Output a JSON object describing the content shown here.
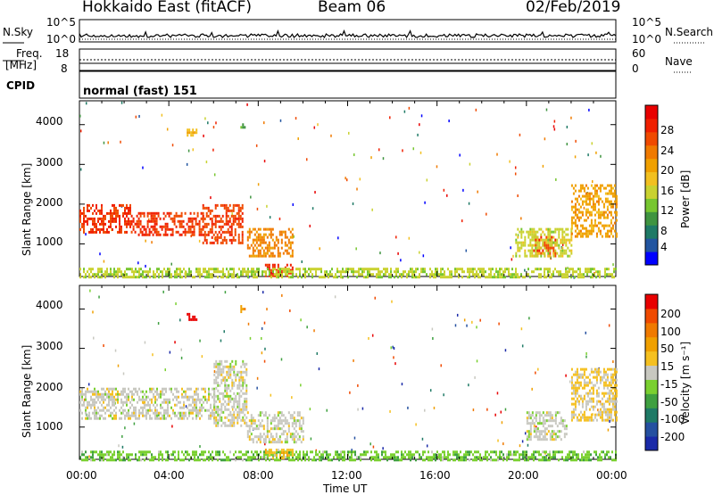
{
  "header": {
    "station": "Hokkaido East (fitACF)",
    "beam": "Beam 06",
    "date": "02/Feb/2019"
  },
  "panels": {
    "nsky": {
      "label": "N.Sky",
      "ticks": [
        "10^5",
        "10^0"
      ]
    },
    "nsearch": {
      "label": "N.Search",
      "ticks": [
        "10^5",
        "10^0"
      ]
    },
    "freq": {
      "label_line1": "Freq.",
      "label_line2": "[MHz]",
      "ticks": [
        "18",
        "8"
      ]
    },
    "nave": {
      "label": "Nave",
      "ticks": [
        "60",
        "0"
      ]
    },
    "cpid": {
      "label": "CPID",
      "value": "normal (fast) 151"
    }
  },
  "time_axis": {
    "label": "Time UT",
    "ticks": [
      "00:00",
      "04:00",
      "08:00",
      "12:00",
      "16:00",
      "20:00",
      "00:00"
    ]
  },
  "range_axis": {
    "label": "Slant Range [km]",
    "ticks": [
      "4000",
      "3000",
      "2000",
      "1000"
    ]
  },
  "power_colorbar": {
    "title": "Power [dB]",
    "ticks": [
      "28",
      "24",
      "20",
      "16",
      "12",
      "8",
      "4"
    ],
    "colors": [
      "#0000ff",
      "#2255a0",
      "#1f7a66",
      "#3f9440",
      "#77c630",
      "#c9d230",
      "#f2c020",
      "#f0a000",
      "#f07a00",
      "#f04a00",
      "#f02000",
      "#e80000"
    ]
  },
  "velocity_colorbar": {
    "title": "Velocity [m s⁻¹]",
    "ticks": [
      "200",
      "100",
      "50",
      "15",
      "-15",
      "-50",
      "-100",
      "-200"
    ],
    "colors": [
      "#1a2aa8",
      "#2550a0",
      "#1f7a66",
      "#3fa040",
      "#7ad030",
      "#c8c8c0",
      "#f5c020",
      "#f0a000",
      "#f07a00",
      "#f04a00",
      "#e80000"
    ]
  },
  "chart_data": [
    {
      "type": "heatmap",
      "title": "Power [dB]",
      "xlabel": "Time UT",
      "ylabel": "Slant Range [km]",
      "xlim": [
        0,
        24
      ],
      "ylim": [
        180,
        4600
      ],
      "zlim": [
        0,
        32
      ],
      "regions": [
        {
          "t0": 0.0,
          "t1": 2.3,
          "r0": 1300,
          "r1": 2000,
          "value": 27
        },
        {
          "t0": 2.3,
          "t1": 5.5,
          "r0": 1250,
          "r1": 1800,
          "value": 27
        },
        {
          "t0": 5.5,
          "t1": 7.3,
          "r0": 1000,
          "r1": 2000,
          "value": 26
        },
        {
          "t0": 7.5,
          "t1": 9.5,
          "r0": 700,
          "r1": 1400,
          "value": 22
        },
        {
          "t0": 8.3,
          "t1": 9.5,
          "r0": 180,
          "r1": 500,
          "value": 28
        },
        {
          "t0": 0.0,
          "t1": 24.0,
          "r0": 180,
          "r1": 400,
          "value": 14
        },
        {
          "t0": 20.3,
          "t1": 21.3,
          "r0": 700,
          "r1": 1200,
          "value": 26
        },
        {
          "t0": 19.5,
          "t1": 22.0,
          "r0": 700,
          "r1": 1400,
          "value": 15
        },
        {
          "t0": 22.0,
          "t1": 24.0,
          "r0": 1200,
          "r1": 2500,
          "value": 20
        },
        {
          "t0": 4.8,
          "t1": 5.2,
          "r0": 3700,
          "r1": 3900,
          "value": 18
        },
        {
          "t0": 7.2,
          "t1": 7.4,
          "r0": 3900,
          "r1": 4100,
          "value": 10
        }
      ]
    },
    {
      "type": "heatmap",
      "title": "Velocity [m s⁻¹]",
      "xlabel": "Time UT",
      "ylabel": "Slant Range [km]",
      "xlim": [
        0,
        24
      ],
      "ylim": [
        180,
        4600
      ],
      "zlim": [
        -200,
        200
      ],
      "regions": [
        {
          "t0": 0.0,
          "t1": 6.0,
          "r0": 1200,
          "r1": 2000,
          "value": 0
        },
        {
          "t0": 6.0,
          "t1": 7.5,
          "r0": 1000,
          "r1": 2700,
          "value": 0
        },
        {
          "t0": 7.5,
          "t1": 10.0,
          "r0": 600,
          "r1": 1400,
          "value": 0
        },
        {
          "t0": 0.0,
          "t1": 24.0,
          "r0": 180,
          "r1": 400,
          "value": -40
        },
        {
          "t0": 8.3,
          "t1": 9.5,
          "r0": 180,
          "r1": 450,
          "value": 40
        },
        {
          "t0": 20.0,
          "t1": 21.8,
          "r0": 700,
          "r1": 1400,
          "value": 0
        },
        {
          "t0": 22.0,
          "t1": 24.0,
          "r0": 1200,
          "r1": 2500,
          "value": 20
        },
        {
          "t0": 4.8,
          "t1": 5.2,
          "r0": 3700,
          "r1": 3900,
          "value": 200
        },
        {
          "t0": 7.2,
          "t1": 7.4,
          "r0": 3900,
          "r1": 4100,
          "value": 80
        }
      ]
    }
  ]
}
